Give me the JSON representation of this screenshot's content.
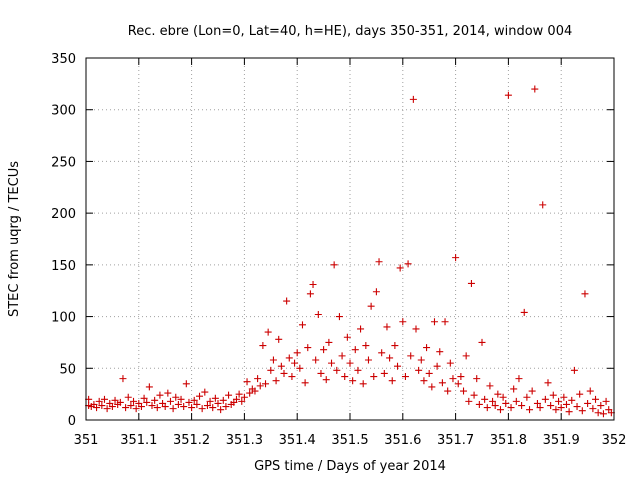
{
  "chart_data": {
    "type": "scatter",
    "title": "Rec. ebre (Lon=0, Lat=40, h=HE), days 350-351, 2014, window 004",
    "xlabel": "GPS time / Days of year 2014",
    "ylabel": "STEC from uqrg / TECUs",
    "xlim": [
      351,
      352
    ],
    "ylim": [
      0,
      350
    ],
    "xticks": [
      "351",
      "351.1",
      "351.2",
      "351.3",
      "351.4",
      "351.5",
      "351.6",
      "351.7",
      "351.8",
      "351.9",
      "352"
    ],
    "yticks": [
      "0",
      "50",
      "100",
      "150",
      "200",
      "250",
      "300",
      "350"
    ],
    "grid": true,
    "marker": "plus",
    "color": "#cc0000",
    "series": [
      {
        "name": "STEC",
        "points": [
          [
            351.005,
            14
          ],
          [
            351.005,
            20
          ],
          [
            351.01,
            13
          ],
          [
            351.015,
            15
          ],
          [
            351.02,
            12
          ],
          [
            351.025,
            18
          ],
          [
            351.03,
            14
          ],
          [
            351.035,
            20
          ],
          [
            351.04,
            11
          ],
          [
            351.045,
            16
          ],
          [
            351.05,
            13
          ],
          [
            351.055,
            19
          ],
          [
            351.06,
            15
          ],
          [
            351.065,
            17
          ],
          [
            351.07,
            40
          ],
          [
            351.075,
            12
          ],
          [
            351.08,
            22
          ],
          [
            351.085,
            14
          ],
          [
            351.09,
            18
          ],
          [
            351.095,
            11
          ],
          [
            351.1,
            16
          ],
          [
            351.105,
            13
          ],
          [
            351.11,
            21
          ],
          [
            351.115,
            17
          ],
          [
            351.12,
            32
          ],
          [
            351.125,
            14
          ],
          [
            351.13,
            19
          ],
          [
            351.135,
            12
          ],
          [
            351.14,
            24
          ],
          [
            351.145,
            16
          ],
          [
            351.15,
            13
          ],
          [
            351.155,
            26
          ],
          [
            351.16,
            18
          ],
          [
            351.165,
            11
          ],
          [
            351.17,
            22
          ],
          [
            351.175,
            15
          ],
          [
            351.18,
            20
          ],
          [
            351.185,
            13
          ],
          [
            351.19,
            35
          ],
          [
            351.195,
            17
          ],
          [
            351.2,
            12
          ],
          [
            351.205,
            19
          ],
          [
            351.21,
            15
          ],
          [
            351.215,
            23
          ],
          [
            351.22,
            11
          ],
          [
            351.225,
            27
          ],
          [
            351.23,
            14
          ],
          [
            351.235,
            18
          ],
          [
            351.24,
            12
          ],
          [
            351.245,
            21
          ],
          [
            351.25,
            16
          ],
          [
            351.255,
            10
          ],
          [
            351.26,
            19
          ],
          [
            351.265,
            13
          ],
          [
            351.27,
            24
          ],
          [
            351.275,
            15
          ],
          [
            351.28,
            17
          ],
          [
            351.285,
            20
          ],
          [
            351.29,
            25
          ],
          [
            351.295,
            18
          ],
          [
            351.3,
            22
          ],
          [
            351.305,
            37
          ],
          [
            351.31,
            26
          ],
          [
            351.315,
            30
          ],
          [
            351.32,
            28
          ],
          [
            351.325,
            40
          ],
          [
            351.33,
            33
          ],
          [
            351.335,
            72
          ],
          [
            351.34,
            35
          ],
          [
            351.345,
            85
          ],
          [
            351.35,
            48
          ],
          [
            351.355,
            58
          ],
          [
            351.36,
            38
          ],
          [
            351.365,
            78
          ],
          [
            351.37,
            52
          ],
          [
            351.375,
            45
          ],
          [
            351.38,
            115
          ],
          [
            351.385,
            60
          ],
          [
            351.39,
            42
          ],
          [
            351.395,
            55
          ],
          [
            351.4,
            65
          ],
          [
            351.405,
            50
          ],
          [
            351.41,
            92
          ],
          [
            351.415,
            36
          ],
          [
            351.42,
            70
          ],
          [
            351.425,
            122
          ],
          [
            351.43,
            131
          ],
          [
            351.435,
            58
          ],
          [
            351.44,
            102
          ],
          [
            351.445,
            45
          ],
          [
            351.45,
            68
          ],
          [
            351.455,
            39
          ],
          [
            351.46,
            75
          ],
          [
            351.465,
            55
          ],
          [
            351.47,
            150
          ],
          [
            351.475,
            48
          ],
          [
            351.48,
            100
          ],
          [
            351.485,
            62
          ],
          [
            351.49,
            42
          ],
          [
            351.495,
            80
          ],
          [
            351.5,
            55
          ],
          [
            351.505,
            38
          ],
          [
            351.51,
            68
          ],
          [
            351.515,
            48
          ],
          [
            351.52,
            88
          ],
          [
            351.525,
            35
          ],
          [
            351.53,
            72
          ],
          [
            351.535,
            58
          ],
          [
            351.54,
            110
          ],
          [
            351.545,
            42
          ],
          [
            351.55,
            124
          ],
          [
            351.555,
            153
          ],
          [
            351.56,
            65
          ],
          [
            351.565,
            45
          ],
          [
            351.57,
            90
          ],
          [
            351.575,
            60
          ],
          [
            351.58,
            38
          ],
          [
            351.585,
            72
          ],
          [
            351.59,
            52
          ],
          [
            351.595,
            147
          ],
          [
            351.6,
            95
          ],
          [
            351.605,
            42
          ],
          [
            351.61,
            151
          ],
          [
            351.615,
            62
          ],
          [
            351.62,
            310
          ],
          [
            351.625,
            88
          ],
          [
            351.63,
            48
          ],
          [
            351.635,
            58
          ],
          [
            351.64,
            38
          ],
          [
            351.645,
            70
          ],
          [
            351.65,
            45
          ],
          [
            351.655,
            32
          ],
          [
            351.66,
            95
          ],
          [
            351.665,
            52
          ],
          [
            351.67,
            66
          ],
          [
            351.675,
            36
          ],
          [
            351.68,
            95
          ],
          [
            351.685,
            28
          ],
          [
            351.69,
            55
          ],
          [
            351.695,
            40
          ],
          [
            351.7,
            157
          ],
          [
            351.705,
            35
          ],
          [
            351.71,
            42
          ],
          [
            351.715,
            28
          ],
          [
            351.72,
            62
          ],
          [
            351.725,
            18
          ],
          [
            351.73,
            132
          ],
          [
            351.735,
            24
          ],
          [
            351.74,
            40
          ],
          [
            351.745,
            15
          ],
          [
            351.75,
            75
          ],
          [
            351.755,
            20
          ],
          [
            351.76,
            12
          ],
          [
            351.765,
            33
          ],
          [
            351.77,
            18
          ],
          [
            351.775,
            14
          ],
          [
            351.78,
            25
          ],
          [
            351.785,
            10
          ],
          [
            351.79,
            22
          ],
          [
            351.795,
            16
          ],
          [
            351.8,
            314
          ],
          [
            351.805,
            12
          ],
          [
            351.81,
            30
          ],
          [
            351.815,
            18
          ],
          [
            351.82,
            40
          ],
          [
            351.825,
            14
          ],
          [
            351.83,
            104
          ],
          [
            351.835,
            22
          ],
          [
            351.84,
            10
          ],
          [
            351.845,
            28
          ],
          [
            351.85,
            320
          ],
          [
            351.855,
            16
          ],
          [
            351.86,
            12
          ],
          [
            351.865,
            208
          ],
          [
            351.87,
            20
          ],
          [
            351.875,
            36
          ],
          [
            351.88,
            14
          ],
          [
            351.885,
            24
          ],
          [
            351.89,
            10
          ],
          [
            351.895,
            18
          ],
          [
            351.9,
            12
          ],
          [
            351.905,
            22
          ],
          [
            351.91,
            15
          ],
          [
            351.915,
            8
          ],
          [
            351.92,
            19
          ],
          [
            351.925,
            48
          ],
          [
            351.93,
            13
          ],
          [
            351.935,
            25
          ],
          [
            351.94,
            9
          ],
          [
            351.945,
            122
          ],
          [
            351.95,
            16
          ],
          [
            351.955,
            28
          ],
          [
            351.96,
            11
          ],
          [
            351.965,
            20
          ],
          [
            351.97,
            7
          ],
          [
            351.975,
            14
          ],
          [
            351.98,
            6
          ],
          [
            351.985,
            18
          ],
          [
            351.99,
            10
          ],
          [
            351.995,
            7
          ]
        ]
      }
    ]
  }
}
